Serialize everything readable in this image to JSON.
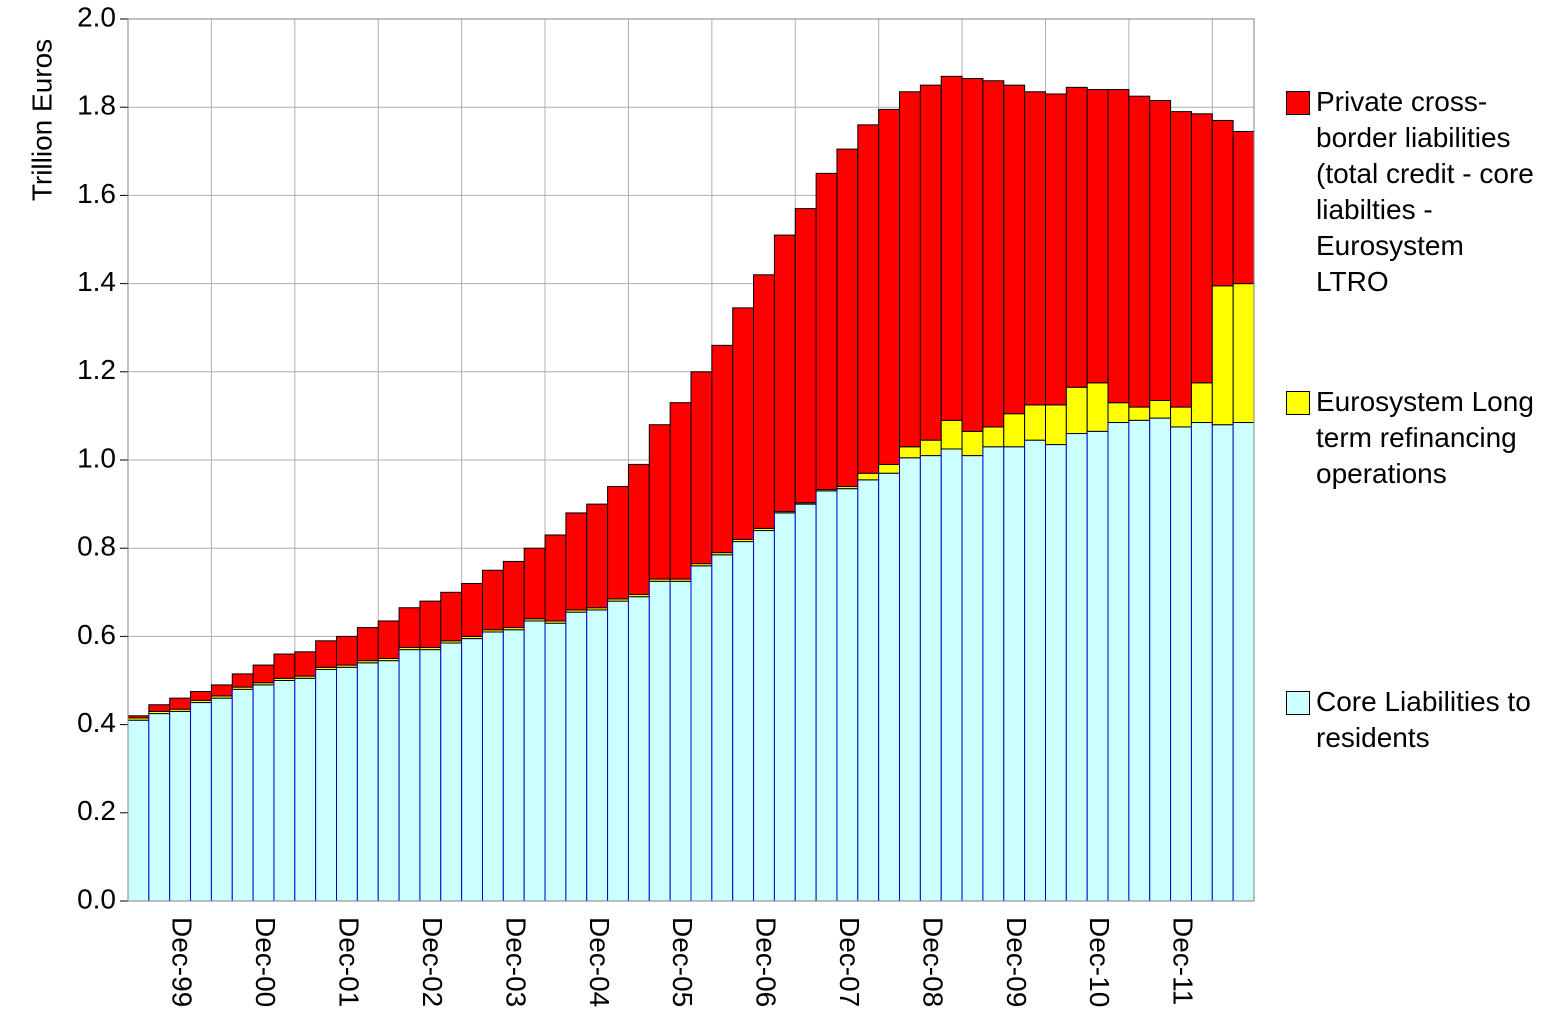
{
  "chart_data": {
    "type": "stacked_bar",
    "y_label": "Trillion Euros",
    "categories": [
      null,
      null,
      "Dec-99",
      null,
      null,
      null,
      "Dec-00",
      null,
      null,
      null,
      "Dec-01",
      null,
      null,
      null,
      "Dec-02",
      null,
      null,
      null,
      "Dec-03",
      null,
      null,
      null,
      "Dec-04",
      null,
      null,
      null,
      "Dec-05",
      null,
      null,
      null,
      "Dec-06",
      null,
      null,
      null,
      "Dec-07",
      null,
      null,
      null,
      "Dec-08",
      null,
      null,
      null,
      "Dec-09",
      null,
      null,
      null,
      "Dec-10",
      null,
      null,
      null,
      "Dec-11",
      null,
      null,
      null
    ],
    "series": [
      {
        "name": "Core Liabilities to residents",
        "color": "#ccffff",
        "edge": "#0000cc",
        "values": [
          0.41,
          0.425,
          0.43,
          0.45,
          0.46,
          0.48,
          0.49,
          0.5,
          0.505,
          0.525,
          0.53,
          0.54,
          0.545,
          0.57,
          0.57,
          0.585,
          0.595,
          0.61,
          0.615,
          0.635,
          0.63,
          0.655,
          0.66,
          0.68,
          0.69,
          0.725,
          0.725,
          0.76,
          0.785,
          0.815,
          0.84,
          0.88,
          0.9,
          0.93,
          0.935,
          0.955,
          0.97,
          1.005,
          1.01,
          1.025,
          1.01,
          1.03,
          1.03,
          1.045,
          1.035,
          1.06,
          1.065,
          1.085,
          1.09,
          1.095,
          1.075,
          1.085,
          1.08,
          1.085
        ]
      },
      {
        "name": "Eurosystem Long term refinancing operations",
        "color": "#ffff00",
        "edge": "#000000",
        "values": [
          0.005,
          0.005,
          0.005,
          0.005,
          0.005,
          0.005,
          0.005,
          0.005,
          0.005,
          0.005,
          0.005,
          0.005,
          0.005,
          0.005,
          0.005,
          0.005,
          0.005,
          0.005,
          0.005,
          0.005,
          0.005,
          0.005,
          0.005,
          0.005,
          0.005,
          0.005,
          0.005,
          0.005,
          0.005,
          0.005,
          0.005,
          0.003,
          0.003,
          0.003,
          0.005,
          0.015,
          0.02,
          0.025,
          0.035,
          0.065,
          0.055,
          0.045,
          0.075,
          0.08,
          0.09,
          0.105,
          0.11,
          0.045,
          0.03,
          0.04,
          0.045,
          0.09,
          0.315,
          0.315
        ]
      },
      {
        "name": "Private cross-border liabilities (total credit - core liabilties - Eurosystem LTRO",
        "color": "#ff0000",
        "edge": "#000000",
        "values": [
          0.005,
          0.015,
          0.025,
          0.02,
          0.025,
          0.03,
          0.04,
          0.055,
          0.055,
          0.06,
          0.065,
          0.075,
          0.085,
          0.09,
          0.105,
          0.11,
          0.12,
          0.135,
          0.15,
          0.16,
          0.195,
          0.22,
          0.235,
          0.255,
          0.295,
          0.35,
          0.4,
          0.435,
          0.47,
          0.525,
          0.575,
          0.627,
          0.667,
          0.717,
          0.765,
          0.79,
          0.805,
          0.805,
          0.805,
          0.78,
          0.8,
          0.785,
          0.745,
          0.71,
          0.705,
          0.68,
          0.665,
          0.71,
          0.705,
          0.68,
          0.67,
          0.61,
          0.375,
          0.345
        ]
      }
    ],
    "ylim": [
      0,
      2
    ],
    "yticks": [
      {
        "value": 0,
        "label": "0.0"
      },
      0.2,
      0.4,
      0.6,
      0.8,
      {
        "value": 1,
        "label": "1.0"
      },
      1.2,
      1.4,
      1.6,
      1.8,
      {
        "value": 2,
        "label": "2.0"
      }
    ],
    "grid": true,
    "legend": "right"
  }
}
